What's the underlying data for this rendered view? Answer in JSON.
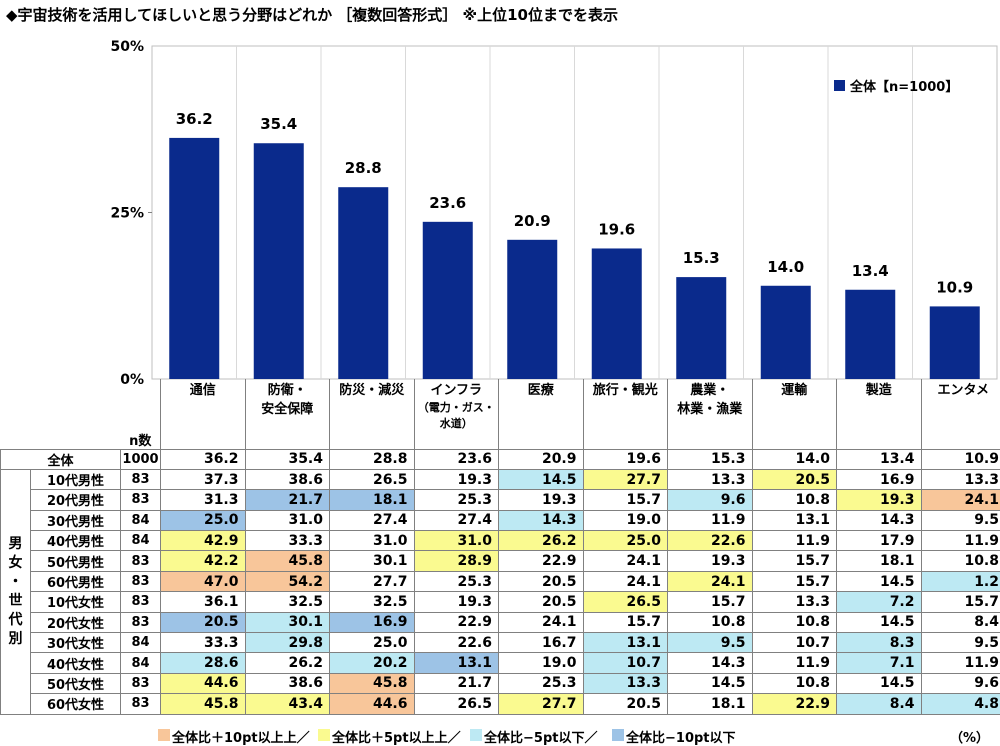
{
  "title": "◆宇宙技術を活用してほしいと思う分野はどれか ［複数回答形式］ ※上位10位までを表示",
  "chart_data": {
    "type": "bar",
    "categories": [
      "通信",
      "防衛・\n安全保障",
      "防災・減災",
      "インフラ\n（電力・ガス・\n水道）",
      "医療",
      "旅行・観光",
      "農業・\n林業・漁業",
      "運輸",
      "製造",
      "エンタメ"
    ],
    "series": [
      {
        "name": "全体【n=1000】",
        "values": [
          36.2,
          35.4,
          28.8,
          23.6,
          20.9,
          19.6,
          15.3,
          14.0,
          13.4,
          10.9
        ]
      }
    ],
    "ylim": [
      0,
      50
    ],
    "yticks": [
      "50%",
      "25%",
      "0%"
    ],
    "legend_position": "top-right",
    "bar_color": "#0a2a8c",
    "table": {
      "n_header": "n数",
      "group_label": [
        "男",
        "女",
        "・",
        "世",
        "代",
        "別"
      ],
      "rows": [
        {
          "label": "全体",
          "n": "1000",
          "values": [
            "36.2",
            "35.4",
            "28.8",
            "23.6",
            "20.9",
            "19.6",
            "15.3",
            "14.0",
            "13.4",
            "10.9"
          ],
          "cls": [
            0,
            0,
            0,
            0,
            0,
            0,
            0,
            0,
            0,
            0
          ]
        },
        {
          "label": "10代男性",
          "n": "83",
          "values": [
            "37.3",
            "38.6",
            "26.5",
            "19.3",
            "14.5",
            "27.7",
            "13.3",
            "20.5",
            "16.9",
            "13.3"
          ],
          "cls": [
            0,
            0,
            0,
            0,
            3,
            2,
            0,
            2,
            0,
            0
          ]
        },
        {
          "label": "20代男性",
          "n": "83",
          "values": [
            "31.3",
            "21.7",
            "18.1",
            "25.3",
            "19.3",
            "15.7",
            "9.6",
            "10.8",
            "19.3",
            "24.1"
          ],
          "cls": [
            0,
            4,
            4,
            0,
            0,
            0,
            3,
            0,
            2,
            1
          ]
        },
        {
          "label": "30代男性",
          "n": "84",
          "values": [
            "25.0",
            "31.0",
            "27.4",
            "27.4",
            "14.3",
            "19.0",
            "11.9",
            "13.1",
            "14.3",
            "9.5"
          ],
          "cls": [
            4,
            0,
            0,
            0,
            3,
            0,
            0,
            0,
            0,
            0
          ]
        },
        {
          "label": "40代男性",
          "n": "84",
          "values": [
            "42.9",
            "33.3",
            "31.0",
            "31.0",
            "26.2",
            "25.0",
            "22.6",
            "11.9",
            "17.9",
            "11.9"
          ],
          "cls": [
            2,
            0,
            0,
            2,
            2,
            2,
            2,
            0,
            0,
            0
          ]
        },
        {
          "label": "50代男性",
          "n": "83",
          "values": [
            "42.2",
            "45.8",
            "30.1",
            "28.9",
            "22.9",
            "24.1",
            "19.3",
            "15.7",
            "18.1",
            "10.8"
          ],
          "cls": [
            2,
            1,
            0,
            2,
            0,
            0,
            0,
            0,
            0,
            0
          ]
        },
        {
          "label": "60代男性",
          "n": "83",
          "values": [
            "47.0",
            "54.2",
            "27.7",
            "25.3",
            "20.5",
            "24.1",
            "24.1",
            "15.7",
            "14.5",
            "1.2"
          ],
          "cls": [
            1,
            1,
            0,
            0,
            0,
            0,
            2,
            0,
            0,
            3
          ]
        },
        {
          "label": "10代女性",
          "n": "83",
          "values": [
            "36.1",
            "32.5",
            "32.5",
            "19.3",
            "20.5",
            "26.5",
            "15.7",
            "13.3",
            "7.2",
            "15.7"
          ],
          "cls": [
            0,
            0,
            0,
            0,
            0,
            2,
            0,
            0,
            3,
            0
          ]
        },
        {
          "label": "20代女性",
          "n": "83",
          "values": [
            "20.5",
            "30.1",
            "16.9",
            "22.9",
            "24.1",
            "15.7",
            "10.8",
            "10.8",
            "14.5",
            "8.4"
          ],
          "cls": [
            4,
            3,
            4,
            0,
            0,
            0,
            0,
            0,
            0,
            0
          ]
        },
        {
          "label": "30代女性",
          "n": "84",
          "values": [
            "33.3",
            "29.8",
            "25.0",
            "22.6",
            "16.7",
            "13.1",
            "9.5",
            "10.7",
            "8.3",
            "9.5"
          ],
          "cls": [
            0,
            3,
            0,
            0,
            0,
            3,
            3,
            0,
            3,
            0
          ]
        },
        {
          "label": "40代女性",
          "n": "84",
          "values": [
            "28.6",
            "26.2",
            "20.2",
            "13.1",
            "19.0",
            "10.7",
            "14.3",
            "11.9",
            "7.1",
            "11.9"
          ],
          "cls": [
            3,
            0,
            3,
            4,
            0,
            3,
            0,
            0,
            3,
            0
          ]
        },
        {
          "label": "50代女性",
          "n": "83",
          "values": [
            "44.6",
            "38.6",
            "45.8",
            "21.7",
            "25.3",
            "13.3",
            "14.5",
            "10.8",
            "14.5",
            "9.6"
          ],
          "cls": [
            2,
            0,
            1,
            0,
            0,
            3,
            0,
            0,
            0,
            0
          ]
        },
        {
          "label": "60代女性",
          "n": "83",
          "values": [
            "45.8",
            "43.4",
            "44.6",
            "26.5",
            "27.7",
            "20.5",
            "18.1",
            "22.9",
            "8.4",
            "4.8"
          ],
          "cls": [
            2,
            2,
            1,
            0,
            2,
            0,
            0,
            2,
            3,
            3
          ]
        }
      ]
    }
  },
  "colors": {
    "c1": "#f8c69a",
    "c2": "#fafa90",
    "c3": "#bde9f3",
    "c4": "#9dc3e6"
  },
  "footer": {
    "items": [
      "全体比＋10pt以上上／",
      "全体比＋5pt以上上／",
      "全体比−5pt以下／",
      "全体比−10pt以下"
    ],
    "unit": "（%）"
  }
}
